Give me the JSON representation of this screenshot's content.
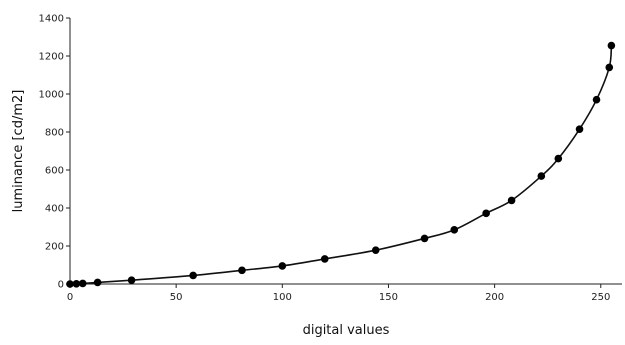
{
  "chart_data": {
    "type": "line",
    "xlabel": "digital values",
    "ylabel": "luminance [cd/m2]",
    "xlim": [
      0,
      260
    ],
    "ylim": [
      0,
      1400
    ],
    "xticks": [
      0,
      50,
      100,
      150,
      200,
      250
    ],
    "yticks": [
      0,
      200,
      400,
      600,
      800,
      1000,
      1200,
      1400
    ],
    "grid": false,
    "legend": "none",
    "series": [
      {
        "markers": true,
        "x": [
          0,
          3,
          6,
          13,
          29,
          58,
          81,
          100,
          120,
          144,
          167,
          181,
          196,
          208,
          222,
          230,
          240,
          248,
          254,
          255
        ],
        "y": [
          0,
          1,
          3,
          8,
          20,
          45,
          72,
          95,
          132,
          178,
          240,
          285,
          372,
          440,
          568,
          660,
          815,
          970,
          1140,
          1255
        ]
      }
    ]
  }
}
